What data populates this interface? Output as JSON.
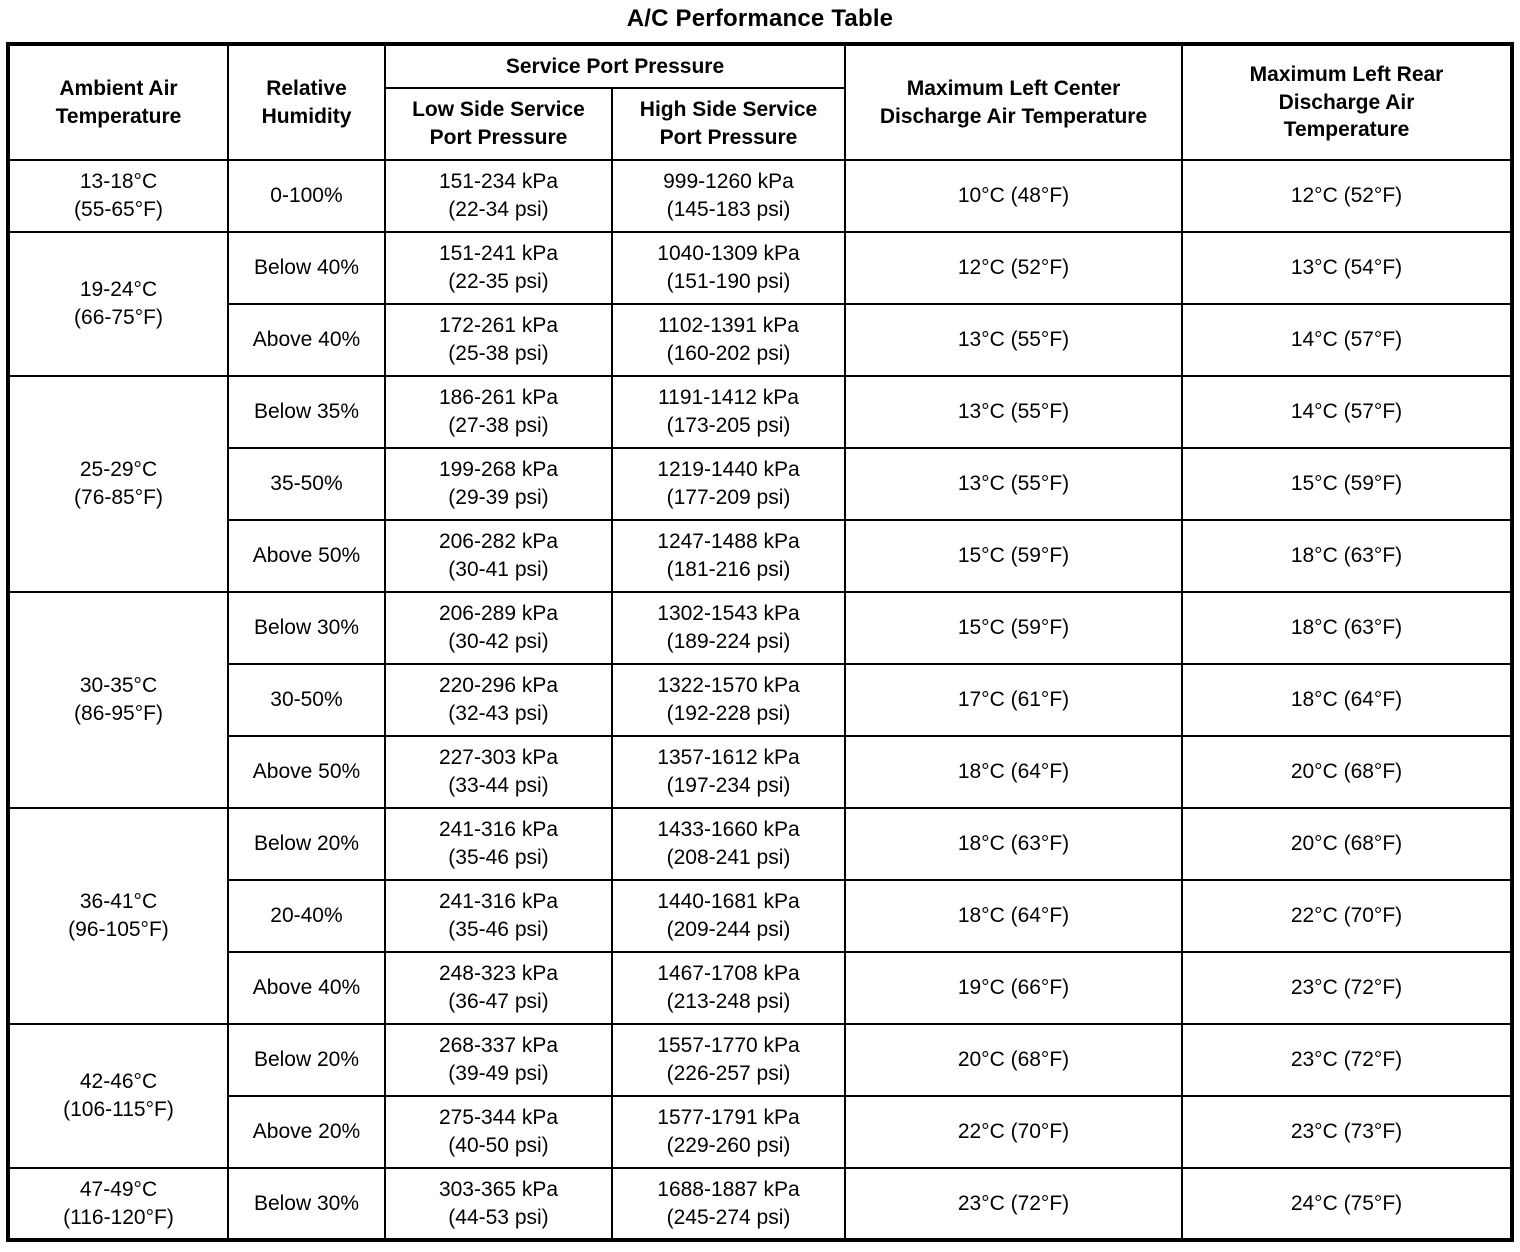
{
  "title": "A/C Performance Table",
  "colors": {
    "border": "#000000",
    "background": "#ffffff",
    "text": "#000000"
  },
  "table": {
    "headers": {
      "ambient": "Ambient Air\nTemperature",
      "humidity": "Relative\nHumidity",
      "service_group": "Service Port Pressure",
      "low_side": "Low Side Service\nPort Pressure",
      "high_side": "High Side Service\nPort Pressure",
      "max_center": "Maximum Left Center\nDischarge Air Temperature",
      "max_rear": "Maximum Left Rear\nDischarge Air\nTemperature"
    },
    "groups": [
      {
        "ambient": "13-18°C\n(55-65°F)",
        "rows": [
          {
            "humidity": "0-100%",
            "low": "151-234 kPa\n(22-34 psi)",
            "high": "999-1260 kPa\n(145-183 psi)",
            "center": "10°C (48°F)",
            "rear": "12°C (52°F)"
          }
        ]
      },
      {
        "ambient": "19-24°C\n(66-75°F)",
        "rows": [
          {
            "humidity": "Below 40%",
            "low": "151-241 kPa\n(22-35 psi)",
            "high": "1040-1309 kPa\n(151-190 psi)",
            "center": "12°C (52°F)",
            "rear": "13°C (54°F)"
          },
          {
            "humidity": "Above 40%",
            "low": "172-261 kPa\n(25-38 psi)",
            "high": "1102-1391 kPa\n(160-202 psi)",
            "center": "13°C (55°F)",
            "rear": "14°C (57°F)"
          }
        ]
      },
      {
        "ambient": "25-29°C\n(76-85°F)",
        "rows": [
          {
            "humidity": "Below 35%",
            "low": "186-261 kPa\n(27-38 psi)",
            "high": "1191-1412 kPa\n(173-205 psi)",
            "center": "13°C (55°F)",
            "rear": "14°C (57°F)"
          },
          {
            "humidity": "35-50%",
            "low": "199-268 kPa\n(29-39 psi)",
            "high": "1219-1440 kPa\n(177-209 psi)",
            "center": "13°C (55°F)",
            "rear": "15°C (59°F)"
          },
          {
            "humidity": "Above 50%",
            "low": "206-282 kPa\n(30-41 psi)",
            "high": "1247-1488 kPa\n(181-216 psi)",
            "center": "15°C (59°F)",
            "rear": "18°C (63°F)"
          }
        ]
      },
      {
        "ambient": "30-35°C\n(86-95°F)",
        "rows": [
          {
            "humidity": "Below 30%",
            "low": "206-289 kPa\n(30-42 psi)",
            "high": "1302-1543 kPa\n(189-224 psi)",
            "center": "15°C (59°F)",
            "rear": "18°C (63°F)"
          },
          {
            "humidity": "30-50%",
            "low": "220-296 kPa\n(32-43 psi)",
            "high": "1322-1570 kPa\n(192-228 psi)",
            "center": "17°C (61°F)",
            "rear": "18°C (64°F)"
          },
          {
            "humidity": "Above 50%",
            "low": "227-303 kPa\n(33-44 psi)",
            "high": "1357-1612 kPa\n(197-234 psi)",
            "center": "18°C (64°F)",
            "rear": "20°C (68°F)"
          }
        ]
      },
      {
        "ambient": "36-41°C\n(96-105°F)",
        "rows": [
          {
            "humidity": "Below 20%",
            "low": "241-316 kPa\n(35-46 psi)",
            "high": "1433-1660 kPa\n(208-241 psi)",
            "center": "18°C (63°F)",
            "rear": "20°C (68°F)"
          },
          {
            "humidity": "20-40%",
            "low": "241-316 kPa\n(35-46 psi)",
            "high": "1440-1681 kPa\n(209-244 psi)",
            "center": "18°C (64°F)",
            "rear": "22°C (70°F)"
          },
          {
            "humidity": "Above 40%",
            "low": "248-323 kPa\n(36-47 psi)",
            "high": "1467-1708 kPa\n(213-248 psi)",
            "center": "19°C (66°F)",
            "rear": "23°C (72°F)"
          }
        ]
      },
      {
        "ambient": "42-46°C\n(106-115°F)",
        "rows": [
          {
            "humidity": "Below 20%",
            "low": "268-337 kPa\n(39-49 psi)",
            "high": "1557-1770 kPa\n(226-257 psi)",
            "center": "20°C (68°F)",
            "rear": "23°C (72°F)"
          },
          {
            "humidity": "Above 20%",
            "low": "275-344 kPa\n(40-50 psi)",
            "high": "1577-1791 kPa\n(229-260 psi)",
            "center": "22°C (70°F)",
            "rear": "23°C (73°F)"
          }
        ]
      },
      {
        "ambient": "47-49°C\n(116-120°F)",
        "rows": [
          {
            "humidity": "Below 30%",
            "low": "303-365 kPa\n(44-53 psi)",
            "high": "1688-1887 kPa\n(245-274 psi)",
            "center": "23°C (72°F)",
            "rear": "24°C (75°F)"
          }
        ]
      }
    ]
  }
}
